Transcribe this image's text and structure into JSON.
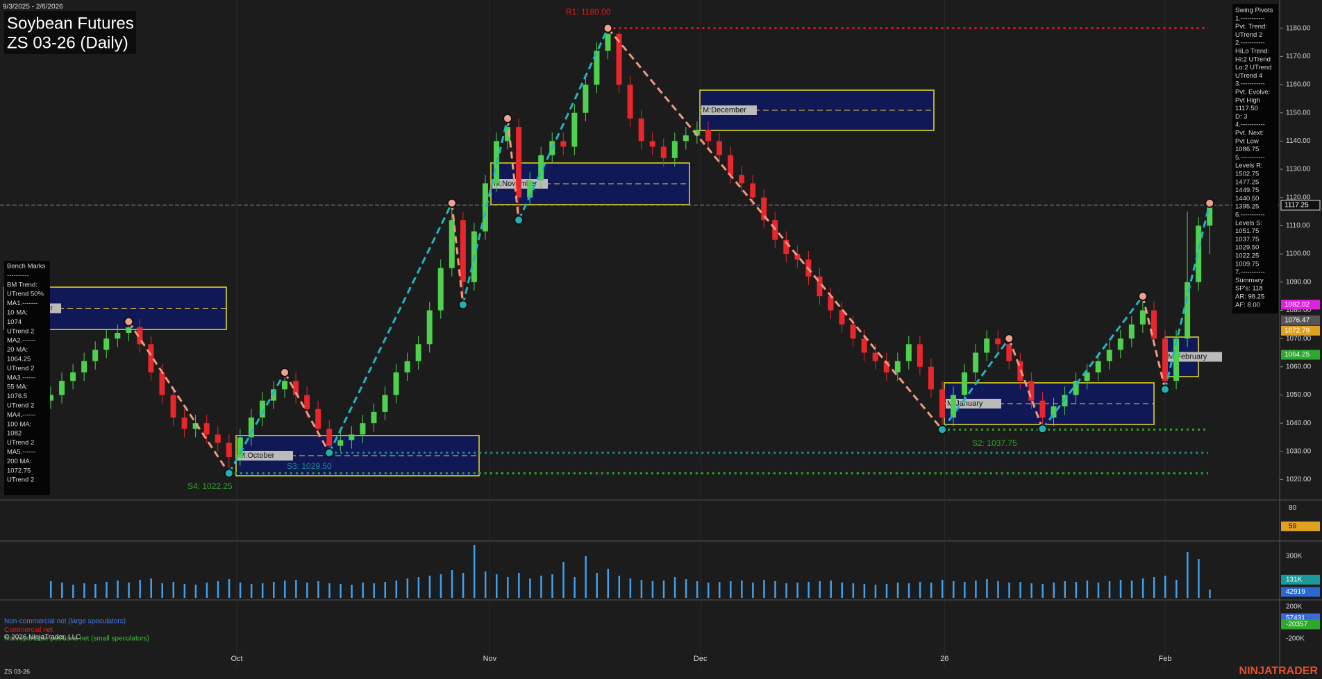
{
  "chart_data": {
    "type": "candlestick",
    "title": "Soybean Futures",
    "subtitle": "ZS 03-26 (Daily)",
    "date_range": "9/3/2025 - 2/6/2026",
    "symbol": "ZS 03-26",
    "brand": "NINJATRADER",
    "copyright": "© 2026 NinjaTrader, LLC",
    "open": [
      1048,
      1050,
      1055,
      1058,
      1062,
      1066,
      1070,
      1072,
      1074,
      1068,
      1058,
      1050,
      1042,
      1038,
      1040,
      1036,
      1033,
      1028,
      1035,
      1042,
      1048,
      1052,
      1055,
      1050,
      1045,
      1038,
      1032,
      1034,
      1036,
      1040,
      1044,
      1050,
      1058,
      1062,
      1068,
      1080,
      1095,
      1112,
      1090,
      1108,
      1125,
      1140,
      1145,
      1120,
      1126,
      1135,
      1140,
      1138,
      1150,
      1160,
      1172,
      1178,
      1160,
      1148,
      1140,
      1138,
      1134,
      1140,
      1142,
      1144,
      1140,
      1135,
      1128,
      1125,
      1120,
      1112,
      1105,
      1100,
      1098,
      1092,
      1085,
      1080,
      1075,
      1070,
      1065,
      1062,
      1058,
      1062,
      1068,
      1060,
      1052,
      1042,
      1050,
      1058,
      1065,
      1070,
      1068,
      1062,
      1055,
      1048,
      1042,
      1046,
      1050,
      1055,
      1058,
      1062,
      1066,
      1070,
      1075,
      1080,
      1070,
      1055,
      1070,
      1090,
      1110
    ],
    "high": [
      1053,
      1058,
      1061,
      1065,
      1069,
      1073,
      1075,
      1076,
      1077,
      1071,
      1061,
      1053,
      1045,
      1043,
      1043,
      1039,
      1036,
      1038,
      1045,
      1051,
      1055,
      1058,
      1058,
      1053,
      1048,
      1041,
      1037,
      1039,
      1043,
      1047,
      1053,
      1061,
      1065,
      1071,
      1083,
      1098,
      1118,
      1115,
      1111,
      1128,
      1143,
      1148,
      1148,
      1129,
      1138,
      1143,
      1143,
      1153,
      1163,
      1175,
      1180,
      1179,
      1163,
      1151,
      1143,
      1141,
      1143,
      1145,
      1147,
      1147,
      1143,
      1138,
      1131,
      1128,
      1123,
      1115,
      1108,
      1103,
      1101,
      1095,
      1088,
      1083,
      1078,
      1073,
      1068,
      1065,
      1065,
      1071,
      1071,
      1063,
      1055,
      1053,
      1061,
      1068,
      1073,
      1073,
      1071,
      1065,
      1058,
      1051,
      1049,
      1053,
      1058,
      1061,
      1065,
      1069,
      1073,
      1078,
      1085,
      1083,
      1073,
      1073,
      1115,
      1113,
      1118
    ],
    "low": [
      1045,
      1047,
      1052,
      1055,
      1059,
      1063,
      1067,
      1069,
      1065,
      1055,
      1047,
      1039,
      1035,
      1035,
      1033,
      1030,
      1022.25,
      1025,
      1032,
      1039,
      1045,
      1049,
      1047,
      1042,
      1035,
      1029.5,
      1030,
      1031,
      1033,
      1037,
      1041,
      1047,
      1055,
      1059,
      1065,
      1077,
      1092,
      1082,
      1087,
      1105,
      1122,
      1137,
      1112,
      1117,
      1123,
      1132,
      1135,
      1135,
      1147,
      1157,
      1169,
      1157,
      1145,
      1137,
      1135,
      1131,
      1131,
      1137,
      1139,
      1137,
      1132,
      1125,
      1122,
      1117,
      1109,
      1102,
      1097,
      1095,
      1089,
      1082,
      1077,
      1072,
      1067,
      1062,
      1059,
      1055,
      1055,
      1059,
      1057,
      1049,
      1037.75,
      1039,
      1047,
      1055,
      1062,
      1065,
      1059,
      1052,
      1045,
      1038,
      1039,
      1043,
      1047,
      1052,
      1055,
      1059,
      1063,
      1067,
      1072,
      1067,
      1052,
      1052,
      1067,
      1087,
      1100
    ],
    "close": [
      1050,
      1055,
      1058,
      1062,
      1066,
      1070,
      1072,
      1074,
      1068,
      1058,
      1050,
      1042,
      1038,
      1040,
      1036,
      1033,
      1028,
      1035,
      1042,
      1048,
      1052,
      1055,
      1050,
      1045,
      1038,
      1032,
      1034,
      1036,
      1040,
      1044,
      1050,
      1058,
      1062,
      1068,
      1080,
      1095,
      1112,
      1090,
      1108,
      1125,
      1140,
      1145,
      1120,
      1126,
      1135,
      1140,
      1138,
      1150,
      1160,
      1172,
      1178,
      1160,
      1148,
      1140,
      1138,
      1134,
      1140,
      1142,
      1144,
      1140,
      1135,
      1128,
      1125,
      1120,
      1112,
      1105,
      1100,
      1098,
      1092,
      1085,
      1080,
      1075,
      1070,
      1065,
      1062,
      1058,
      1062,
      1068,
      1060,
      1052,
      1042,
      1050,
      1058,
      1065,
      1070,
      1068,
      1062,
      1055,
      1048,
      1042,
      1046,
      1050,
      1055,
      1058,
      1062,
      1066,
      1070,
      1075,
      1080,
      1070,
      1055,
      1070,
      1090,
      1110,
      1117.25
    ],
    "up_color": "#4fd14f",
    "down_color": "#e8262b",
    "ylim": [
      1013,
      1190
    ],
    "yticks": [
      {
        "value": 1020,
        "label": "1020.00"
      },
      {
        "value": 1030,
        "label": "1030.00"
      },
      {
        "value": 1040,
        "label": "1040.00"
      },
      {
        "value": 1050,
        "label": "1050.00"
      },
      {
        "value": 1060,
        "label": "1060.00"
      },
      {
        "value": 1070,
        "label": "1070.00"
      },
      {
        "value": 1080,
        "label": "1080.00"
      },
      {
        "value": 1090,
        "label": "1090.00"
      },
      {
        "value": 1100,
        "label": "1100.00"
      },
      {
        "value": 1110,
        "label": "1110.00"
      },
      {
        "value": 1120,
        "label": "1120.00"
      },
      {
        "value": 1130,
        "label": "1130.00"
      },
      {
        "value": 1140,
        "label": "1140.00"
      },
      {
        "value": 1150,
        "label": "1150.00"
      },
      {
        "value": 1160,
        "label": "1160.00"
      },
      {
        "value": 1170,
        "label": "1170.00"
      },
      {
        "value": 1180,
        "label": "1180.00"
      }
    ],
    "xlim": [
      -0.5,
      108
    ],
    "xticks": [
      {
        "value": 16.7,
        "label": "Oct"
      },
      {
        "value": 39.4,
        "label": "Nov"
      },
      {
        "value": 58.3,
        "label": "Dec"
      },
      {
        "value": 80.2,
        "label": "26"
      },
      {
        "value": 100,
        "label": "Feb"
      }
    ],
    "last_price": 1117.25,
    "price_tags": [
      {
        "value": 1117.25,
        "color": "#101010"
      },
      {
        "value": 1082.02,
        "color": "#e020e0"
      },
      {
        "value": 1076.47,
        "color": "#555555"
      },
      {
        "value": 1072.79,
        "color": "#e0a020"
      },
      {
        "value": 1064.25,
        "color": "#2ea82e"
      }
    ],
    "levels": [
      {
        "label": "R1: 1180.00",
        "value": 1180,
        "color": "#e01818"
      },
      {
        "label": "S2: 1037.75",
        "value": 1037.75,
        "color": "#2aa52a"
      },
      {
        "label": "S3: 1029.50",
        "value": 1029.5,
        "color": "#1a8f8f"
      },
      {
        "label": "S4: 1022.25",
        "value": 1022.25,
        "color": "#2aa52a"
      }
    ],
    "swing_line": {
      "x": [
        7,
        16,
        21,
        25,
        36,
        37,
        41,
        42,
        50,
        80,
        86,
        89,
        98,
        100,
        104
      ],
      "y": [
        1076,
        1022.25,
        1058,
        1029.5,
        1118,
        1082,
        1148,
        1112,
        1180,
        1037.75,
        1070,
        1038,
        1085,
        1052,
        1118
      ]
    },
    "zones": [
      "M:September",
      "M:October",
      "M:November",
      "M:December",
      "M:January",
      "M:February"
    ],
    "swing_pivots": [
      "Swing Pivots",
      "1.-----------",
      "Pvt. Trend:",
      "UTrend 2",
      "2.-----------",
      "HiLo Trend:",
      "Hi:2 UTrend",
      "Lo:2 UTrend",
      "UTrend 4",
      "3.-----------",
      "Pvt. Evolve:",
      "Pvt High",
      "1117.50",
      "D: 3",
      "4.-----------",
      "Pvt. Next:",
      "Pvt Low",
      "1086.75",
      "5.-----------",
      "Levels R:",
      "1502.75",
      "1477.25",
      "1449.75",
      "1440.50",
      "1395.25",
      "6.-----------",
      "Levels S:",
      "1051.75",
      "1037.75",
      "1029.50",
      "1022.25",
      "1009.75",
      "7.-----------",
      "Summary",
      "SP's: 118",
      "AR: 98.25",
      "AF: 8.00"
    ],
    "bench_marks": [
      "Bench Marks",
      "----------",
      "BM Trend:",
      "UTrend 50%",
      "MA1.-------",
      "10 MA:",
      "1074",
      "UTrend 2",
      "MA2.------",
      "20 MA:",
      "1064.25",
      "UTrend 2",
      "MA3.------",
      "55 MA:",
      "1076.5",
      "UTrend 2",
      "MA4.------",
      "100 MA:",
      "1082",
      "UTrend 2",
      "MA5.------",
      "200 MA:",
      "1072.75",
      "UTrend 2"
    ],
    "oscillator": {
      "ylim": [
        44,
        88
      ],
      "yticks": [
        80
      ],
      "tag": {
        "value": 59,
        "color": "#e0a020"
      }
    },
    "volume": {
      "color": "#3fa0f0",
      "ylim": [
        0,
        400000
      ],
      "yticks": [
        {
          "value": 300000,
          "label": "300K"
        }
      ],
      "values": [
        120000,
        110000,
        95000,
        105000,
        100000,
        115000,
        125000,
        110000,
        130000,
        140000,
        105000,
        115000,
        100000,
        95000,
        110000,
        120000,
        135000,
        110000,
        100000,
        105000,
        115000,
        125000,
        130000,
        110000,
        120000,
        105000,
        100000,
        95000,
        110000,
        105000,
        115000,
        125000,
        140000,
        150000,
        160000,
        170000,
        200000,
        180000,
        380000,
        190000,
        170000,
        150000,
        180000,
        140000,
        160000,
        170000,
        260000,
        150000,
        300000,
        180000,
        210000,
        160000,
        140000,
        130000,
        120000,
        125000,
        150000,
        135000,
        120000,
        110000,
        115000,
        120000,
        125000,
        110000,
        130000,
        120000,
        105000,
        110000,
        115000,
        120000,
        125000,
        110000,
        105000,
        100000,
        95000,
        100000,
        110000,
        105000,
        115000,
        110000,
        130000,
        120000,
        115000,
        125000,
        135000,
        120000,
        110000,
        115000,
        105000,
        100000,
        110000,
        120000,
        115000,
        125000,
        110000,
        120000,
        130000,
        125000,
        140000,
        150000,
        160000,
        130000,
        330000,
        280000,
        60000
      ],
      "tags": [
        {
          "value": 131000,
          "label": "131K",
          "color": "#1a9a9a"
        },
        {
          "value": 42919,
          "color": "#2a6ad0"
        }
      ]
    },
    "cot": {
      "ylim": [
        -556000,
        270000
      ],
      "yticks": [
        {
          "value": 200000,
          "label": "200K"
        },
        {
          "value": -200000,
          "label": "-200K"
        }
      ],
      "tags": [
        {
          "value": 57431,
          "color": "#3a6ad8"
        },
        {
          "value": -20357,
          "color": "#2ea82e"
        }
      ],
      "legend": [
        {
          "name": "Non-commercial net (large speculators)",
          "color": "#4a7ae0"
        },
        {
          "name": "Commercial net",
          "color": "#e02020"
        },
        {
          "name": "Nonreportable positions net (small speculators)",
          "color": "#3ac03a"
        }
      ]
    }
  }
}
